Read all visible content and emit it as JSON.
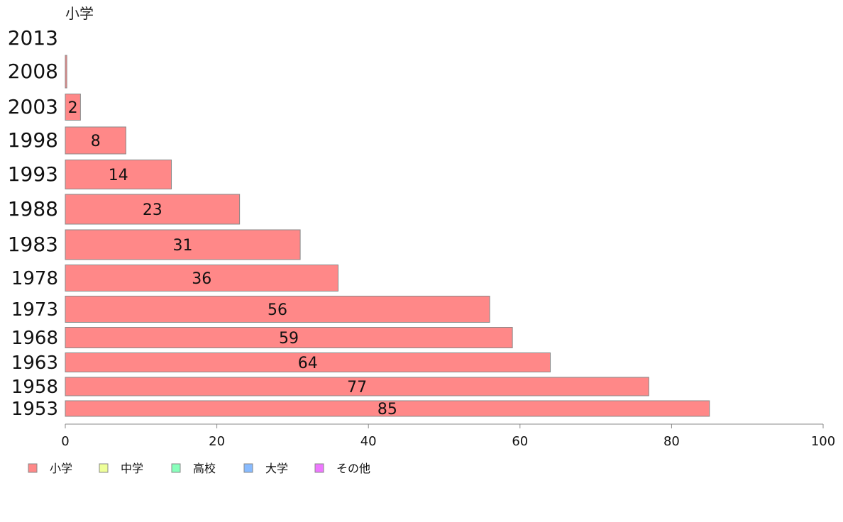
{
  "chart_data": {
    "type": "bar",
    "orientation": "horizontal",
    "title": "小学",
    "categories": [
      "1953",
      "1958",
      "1963",
      "1968",
      "1973",
      "1978",
      "1983",
      "1988",
      "1993",
      "1998",
      "2003",
      "2008",
      "2013"
    ],
    "series": [
      {
        "name": "小学",
        "color": "#ff8888",
        "values": [
          85,
          77,
          64,
          59,
          56,
          36,
          31,
          23,
          14,
          8,
          2,
          0.2,
          0
        ],
        "labels": [
          "85",
          "77",
          "64",
          "59",
          "56",
          "36",
          "31",
          "23",
          "14",
          "8",
          "2",
          "",
          ""
        ]
      }
    ],
    "xlim": [
      0,
      100
    ],
    "xticks": [
      "0",
      "20",
      "40",
      "60",
      "80",
      "100"
    ],
    "grid": false,
    "legend": {
      "placement": "bottom-left",
      "items": [
        {
          "label": "小学",
          "color": "#ff8888"
        },
        {
          "label": "中学",
          "color": "#eeff99"
        },
        {
          "label": "高校",
          "color": "#88ffbb"
        },
        {
          "label": "大学",
          "color": "#88bbff"
        },
        {
          "label": "その他",
          "color": "#ee77ff"
        }
      ]
    }
  }
}
